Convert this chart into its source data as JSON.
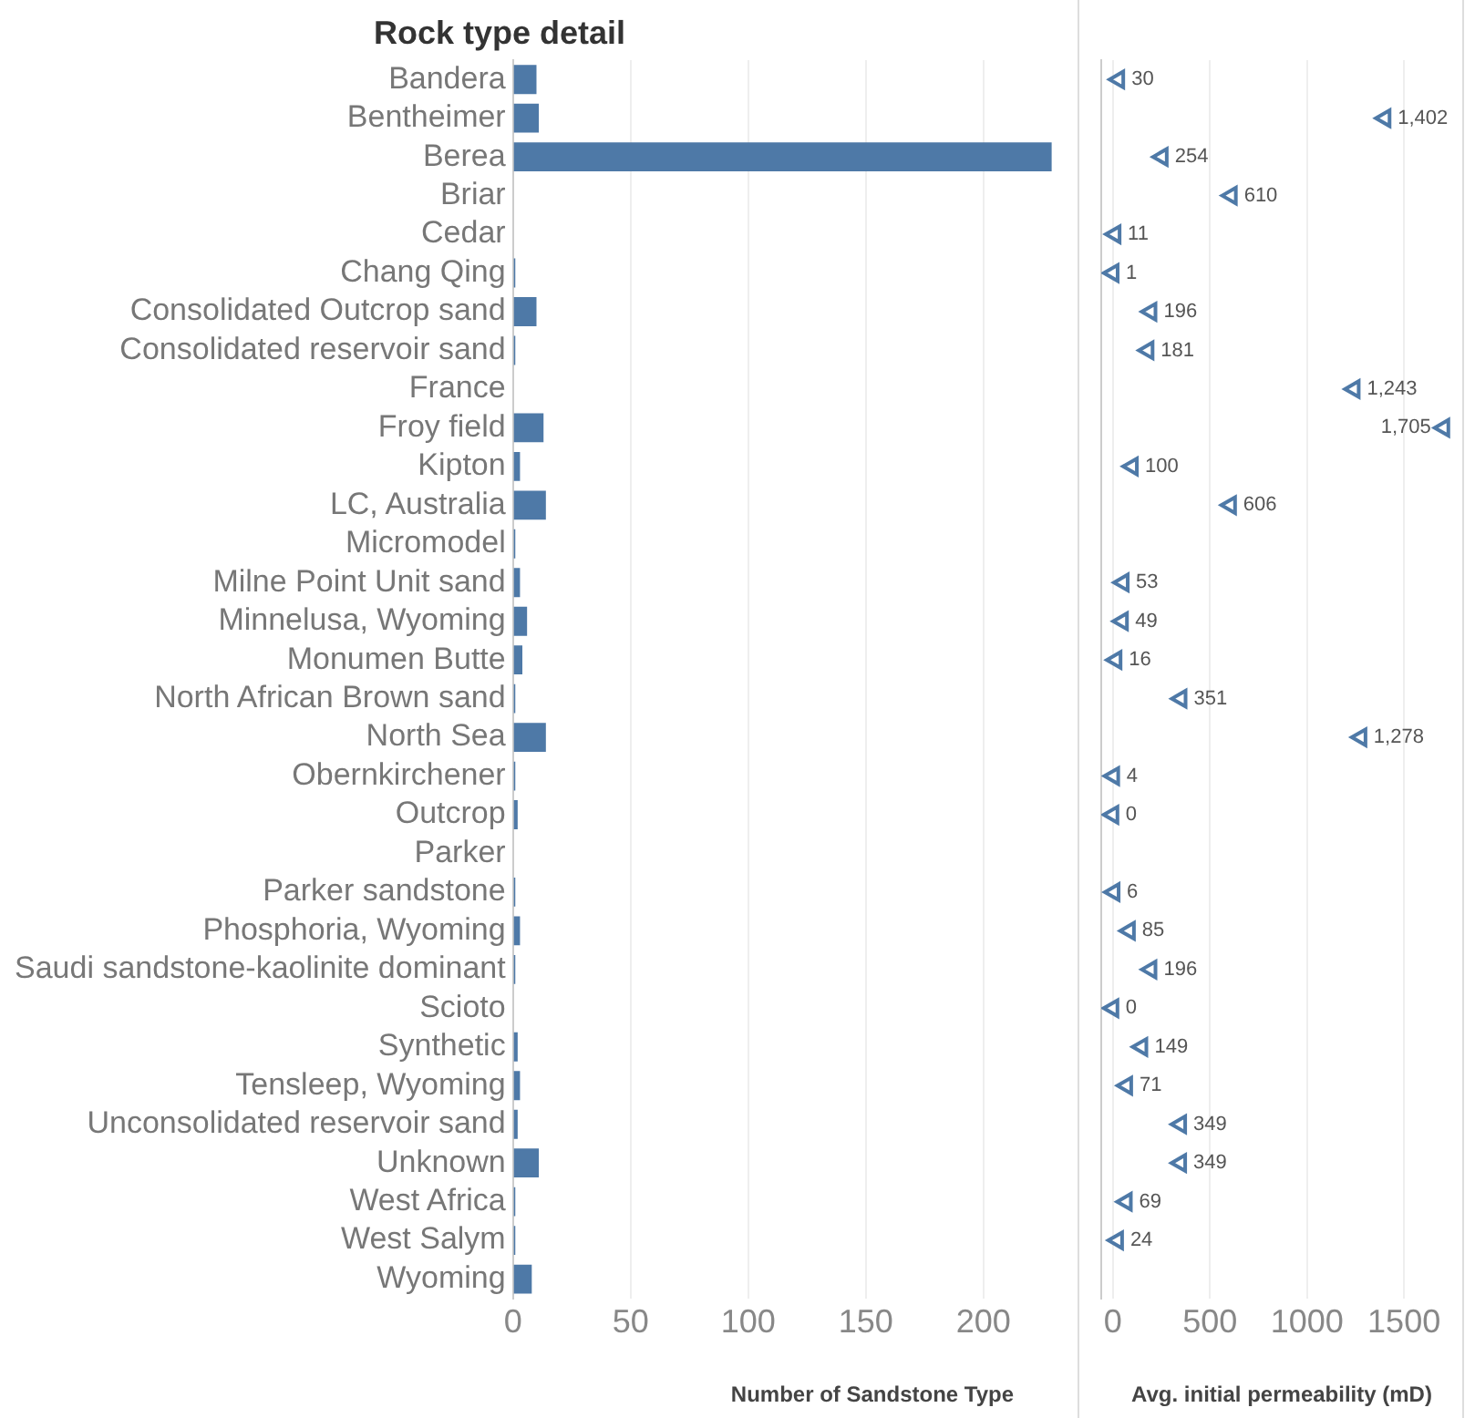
{
  "chart_data": [
    {
      "type": "bar",
      "orientation": "horizontal",
      "title": "Rock type detail",
      "xlabel": "Number of Sandstone Type",
      "color": "#4e79a7",
      "grid": "x",
      "categories": [
        "Bandera",
        "Bentheimer",
        "Berea",
        "Briar",
        "Cedar",
        "Chang Qing",
        "Consolidated Outcrop sand",
        "Consolidated reservoir sand",
        "France",
        "Froy field",
        "Kipton",
        "LC, Australia",
        "Micromodel",
        "Milne Point Unit sand",
        "Minnelusa, Wyoming",
        "Monumen Butte",
        "North African Brown sand",
        "North Sea",
        "Obernkirchener",
        "Outcrop",
        "Parker",
        "Parker sandstone",
        "Phosphoria, Wyoming",
        "Saudi sandstone-kaolinite dominant",
        "Scioto",
        "Synthetic",
        "Tensleep, Wyoming",
        "Unconsolidated reservoir sand",
        "Unknown",
        "West Africa",
        "West Salym",
        "Wyoming"
      ],
      "values": [
        10,
        11,
        229,
        null,
        null,
        1,
        10,
        1,
        null,
        13,
        3,
        14,
        1,
        3,
        6,
        4,
        1,
        14,
        1,
        2,
        null,
        1,
        3,
        1,
        null,
        2,
        3,
        2,
        11,
        1,
        1,
        8
      ],
      "xlim": [
        0,
        240
      ],
      "xticks": [
        0,
        50,
        100,
        150,
        200
      ]
    },
    {
      "type": "scatter",
      "orientation": "horizontal",
      "xlabel": "Avg. initial permeability (mD)",
      "color": "#4e79a7",
      "marker": "triangle",
      "grid": "x",
      "tick_labels": "x",
      "values": [
        30,
        1402,
        254,
        610,
        11,
        1,
        196,
        181,
        1243,
        1705,
        100,
        606,
        null,
        53,
        49,
        16,
        351,
        1278,
        4,
        0,
        null,
        6,
        85,
        196,
        0,
        149,
        71,
        349,
        349,
        69,
        24,
        null
      ],
      "value_labels": [
        "30",
        "1,402",
        "254",
        "610",
        "11",
        "1",
        "196",
        "181",
        "1,243",
        "1,705",
        "100",
        "606",
        null,
        "53",
        "49",
        "16",
        "351",
        "1,278",
        "4",
        "0",
        null,
        "6",
        "85",
        "196",
        "0",
        "149",
        "71",
        "349",
        "349",
        "69",
        "24",
        null
      ],
      "xlim": [
        -60,
        1800
      ],
      "xticks": [
        0,
        500,
        1000,
        1500
      ]
    }
  ]
}
